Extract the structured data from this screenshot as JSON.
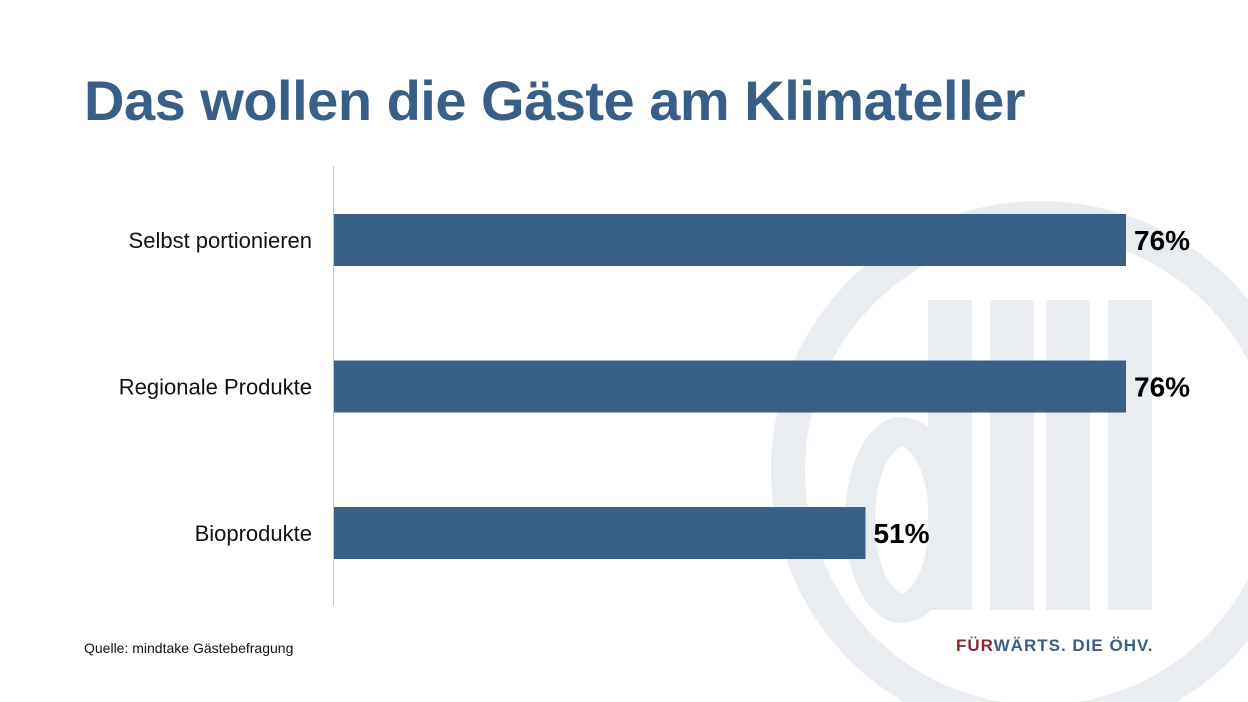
{
  "slide": {
    "title": "Das wollen die Gäste am Klimateller",
    "source": "Quelle: mindtake Gästebefragung",
    "slogan_accent": "FÜR",
    "slogan_rest": "WÄRTS. DIE ÖHV.",
    "watermark_letters": "ÖHV"
  },
  "colors": {
    "title": "#3a5f87",
    "bar": "#385f86",
    "slogan_accent": "#8b2a2e",
    "watermark": "#e9ecf1"
  },
  "chart_data": {
    "type": "bar",
    "orientation": "horizontal",
    "categories": [
      "Selbst portionieren",
      "Regionale Produkte",
      "Bioprodukte"
    ],
    "values": [
      76,
      76,
      51
    ],
    "value_labels": [
      "76%",
      "76%",
      "51%"
    ],
    "xlim": [
      0,
      76
    ],
    "grid": false,
    "legend": "none"
  }
}
